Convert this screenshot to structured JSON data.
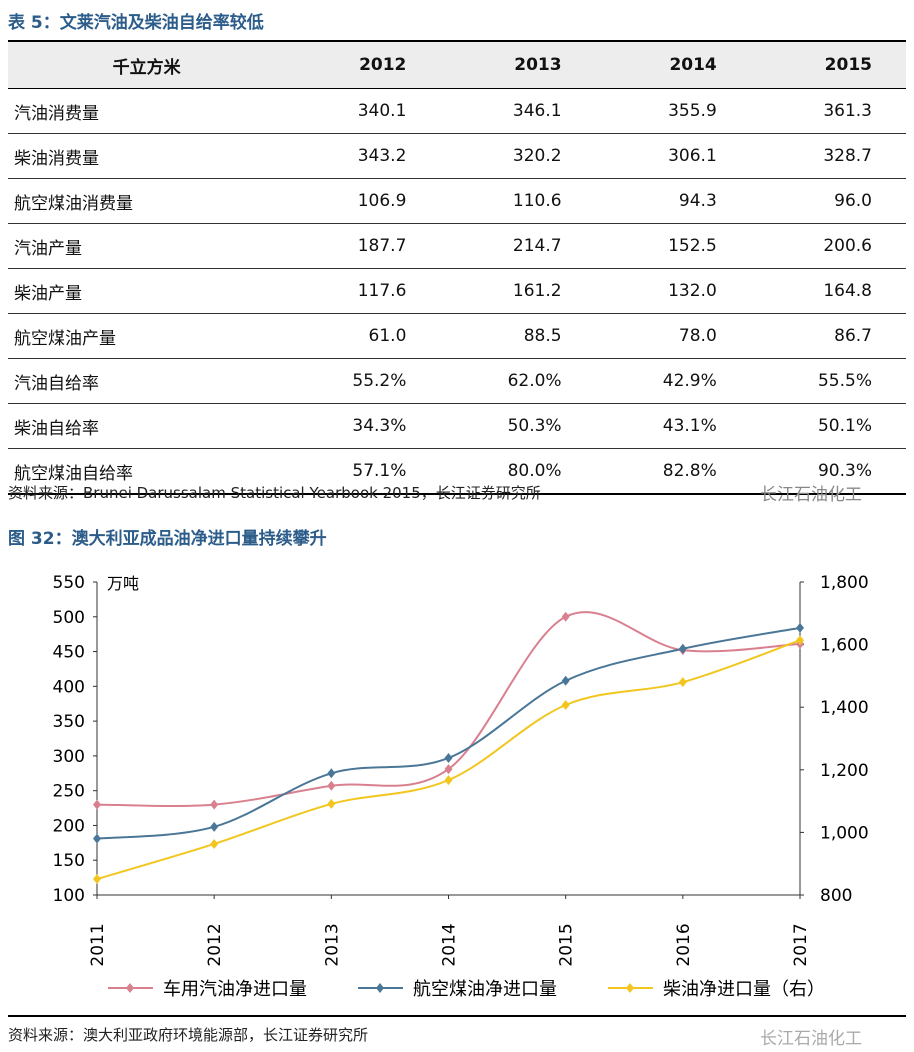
{
  "table": {
    "caption": "表 5：文莱汽油及柴油自给率较低",
    "headers": [
      "千立方米",
      "2012",
      "2013",
      "2014",
      "2015"
    ],
    "rows": [
      [
        "汽油消费量",
        "340.1",
        "346.1",
        "355.9",
        "361.3"
      ],
      [
        "柴油消费量",
        "343.2",
        "320.2",
        "306.1",
        "328.7"
      ],
      [
        "航空煤油消费量",
        "106.9",
        "110.6",
        "94.3",
        "96.0"
      ],
      [
        "汽油产量",
        "187.7",
        "214.7",
        "152.5",
        "200.6"
      ],
      [
        "柴油产量",
        "117.6",
        "161.2",
        "132.0",
        "164.8"
      ],
      [
        "航空煤油产量",
        "61.0",
        "88.5",
        "78.0",
        "86.7"
      ],
      [
        "汽油自给率",
        "55.2%",
        "62.0%",
        "42.9%",
        "55.5%"
      ],
      [
        "柴油自给率",
        "34.3%",
        "50.3%",
        "43.1%",
        "50.1%"
      ],
      [
        "航空煤油自给率",
        "57.1%",
        "80.0%",
        "82.8%",
        "90.3%"
      ]
    ],
    "source": "资料来源：Brunei Darussalam Statistical Yearbook 2015，长江证券研究所"
  },
  "watermark": "长江石油化工",
  "figure": {
    "caption": "图 32：澳大利亚成品油净进口量持续攀升",
    "source": "资料来源：澳大利亚政府环境能源部，长江证券研究所"
  },
  "chart_data": {
    "type": "line",
    "x": [
      "2011",
      "2012",
      "2013",
      "2014",
      "2015",
      "2016",
      "2017"
    ],
    "y_unit": "万吨",
    "ylim_left": [
      100,
      550
    ],
    "yticks_left": [
      100,
      150,
      200,
      250,
      300,
      350,
      400,
      450,
      500,
      550
    ],
    "ylim_right": [
      800,
      1800
    ],
    "yticks_right": [
      "800",
      "1,000",
      "1,200",
      "1,400",
      "1,600",
      "1,800"
    ],
    "legend": "bottom",
    "grid": false,
    "series": [
      {
        "name": "车用汽油净进口量",
        "axis": "left",
        "color": "#d9808f",
        "values": [
          230,
          230,
          257,
          281,
          500,
          452,
          461
        ]
      },
      {
        "name": "航空煤油净进口量",
        "axis": "left",
        "color": "#4a7797",
        "values": [
          181,
          198,
          275,
          297,
          408,
          454,
          484
        ]
      },
      {
        "name": "柴油净进口量（右）",
        "axis": "right",
        "color": "#f2c61f",
        "values": [
          851,
          963,
          1091,
          1167,
          1407,
          1480,
          1614
        ]
      }
    ]
  }
}
